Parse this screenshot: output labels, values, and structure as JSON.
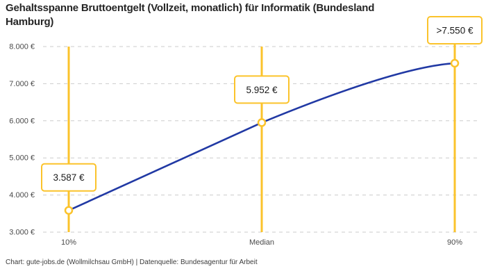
{
  "header": {
    "title": "Gehaltsspanne Bruttoentgelt (Vollzeit, monatlich) für Informatik (Bundesland Hamburg)",
    "title_lines": [
      "Gehaltsspanne Bruttoentgelt (Vollzeit, monatlich) für Informatik (Bundesland",
      "Hamburg)"
    ]
  },
  "footer": {
    "text": "Chart: gute-jobs.de (Wollmilchsau GmbH) | Datenquelle: Bundesagentur für Arbeit"
  },
  "chart_data": {
    "type": "line",
    "title": "Gehaltsspanne Bruttoentgelt (Vollzeit, monatlich) für Informatik (Bundesland Hamburg)",
    "categories": [
      "10%",
      "Median",
      "90%"
    ],
    "values": [
      3587,
      5952,
      7550
    ],
    "point_labels": [
      "3.587 €",
      "5.952 €",
      ">7.550 €"
    ],
    "note_90th_percentile_capped": true,
    "y_ticks": [
      3000,
      4000,
      5000,
      6000,
      7000,
      8000
    ],
    "y_tick_labels": [
      "3.000 €",
      "4.000 €",
      "5.000 €",
      "6.000 €",
      "7.000 €",
      "8.000 €"
    ],
    "ylim": [
      3000,
      8000
    ],
    "xlabel": "",
    "ylabel": "",
    "grid": "horizontal-dashed",
    "legend": "none",
    "line_shape": "straight from 10% to Median, smooth plateau toward 90%",
    "colors": {
      "line": "#2139A4",
      "accent": "#FBC32B",
      "marker_fill": "#FFFFFF",
      "grid": "#CBCBCB",
      "tick_text": "#4A4A4A",
      "label_text": "#1A1A1A",
      "box_fill": "#FFFFFF"
    }
  }
}
